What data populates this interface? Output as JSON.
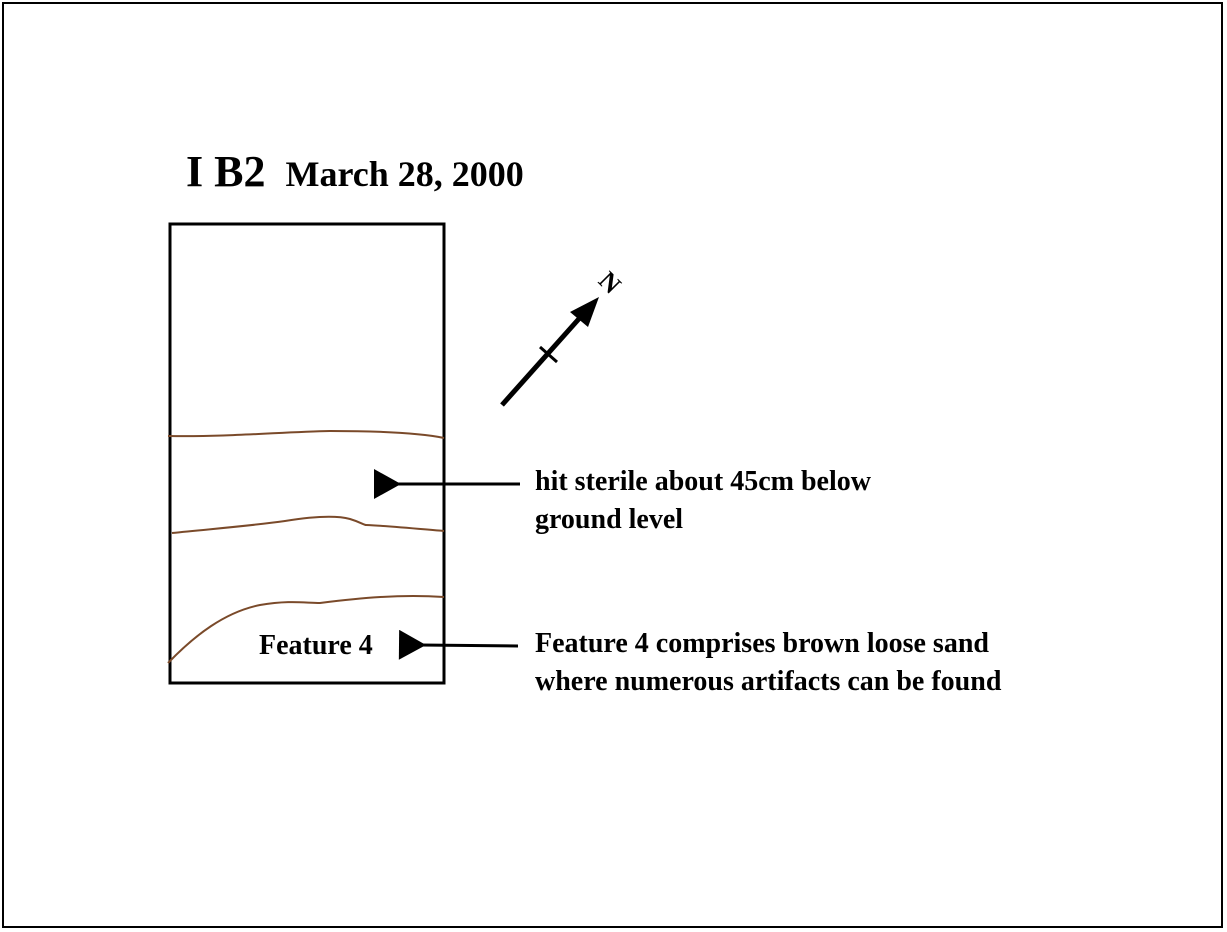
{
  "title": {
    "unit": "I B2",
    "date": "March 28, 2000"
  },
  "north_label": "N",
  "feature_label": "Feature 4",
  "notes": {
    "sterile": "hit sterile about 45cm below ground level",
    "feature": "Feature 4 comprises brown loose sand where numerous artifacts can be found"
  },
  "colors": {
    "stratum_line": "#7a4a2a",
    "ink": "#000000"
  },
  "icons": {
    "north_arrow": "north-arrow-icon"
  }
}
